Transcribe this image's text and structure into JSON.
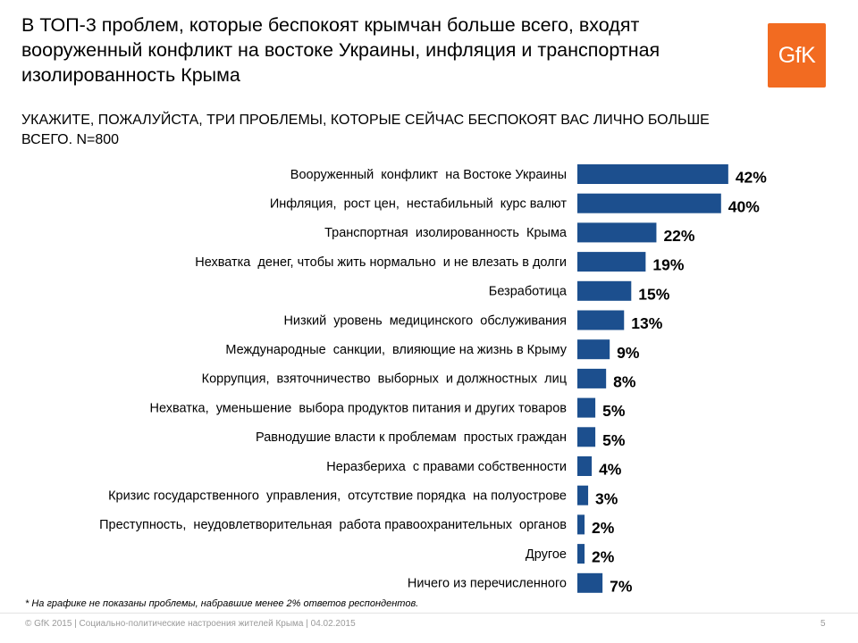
{
  "title": "В ТОП-3 проблем, которые беспокоят крымчан больше всего, входят вооруженный конфликт на востоке Украины, инфляция и транспортная изолированность Крыма",
  "logo_text": "GfK",
  "colors": {
    "bar": "#1c4f8e",
    "logo": "#f26b21"
  },
  "chart_data": {
    "type": "bar",
    "orientation": "horizontal",
    "title": "УКАЖИТЕ, ПОЖАЛУЙСТА, ТРИ ПРОБЛЕМЫ, КОТОРЫЕ СЕЙЧАС БЕСПОКОЯТ ВАС ЛИЧНО БОЛЬШЕ ВСЕГО. N=800",
    "unit": "%",
    "xlim": [
      0,
      100
    ],
    "grid": false,
    "categories": [
      "Вооруженный  конфликт  на Востоке Украины",
      "Инфляция,  рост цен,  нестабильный  курс валют",
      "Транспортная  изолированность  Крыма",
      "Нехватка  денег, чтобы жить нормально  и не влезать в долги",
      "Безработица",
      "Низкий  уровень  медицинского  обслуживания",
      "Международные  санкции,  влияющие на жизнь в Крыму",
      "Коррупция,  взяточничество  выборных  и должностных  лиц",
      "Нехватка,  уменьшение  выбора продуктов питания и других товаров",
      "Равнодушие власти к проблемам  простых граждан",
      "Неразбериха  с правами собственности",
      "Кризис государственного  управления,  отсутствие порядка  на полуострове",
      "Преступность,  неудовлетворительная  работа правоохранительных  органов",
      "Другое",
      "Ничего из перечисленного"
    ],
    "values": [
      42,
      40,
      22,
      19,
      15,
      13,
      9,
      8,
      5,
      5,
      4,
      3,
      2,
      2,
      7
    ],
    "value_labels": [
      "42%",
      "40%",
      "22%",
      "19%",
      "15%",
      "13%",
      "9%",
      "8%",
      "5%",
      "5%",
      "4%",
      "3%",
      "2%",
      "2%",
      "7%"
    ]
  },
  "footnote": "* На графике не показаны проблемы, набравшие менее 2% ответов респондентов.",
  "footer": "© GfK 2015 | Социально-политические настроения жителей Крыма | 04.02.2015",
  "page_number": "5"
}
